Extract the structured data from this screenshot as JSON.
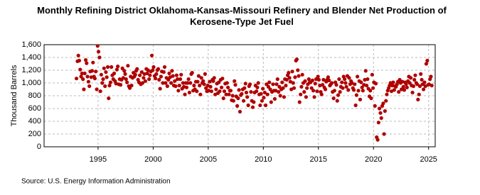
{
  "chart_data": {
    "type": "scatter",
    "title": "Monthly Refining District Oklahoma-Kansas-Missouri Refinery and Blender Net Production of Kerosene-Type Jet Fuel",
    "y_label": "Thousand Barrels",
    "source": "Source: U.S. Energy Information Administration",
    "xlim": [
      1990.1,
      2025.6
    ],
    "xticks": [
      1995,
      2000,
      2005,
      2010,
      2015,
      2020,
      2025
    ],
    "ylim": [
      0,
      1600
    ],
    "yticks": [
      0,
      200,
      400,
      600,
      800,
      {
        "value": 1000,
        "label": "1,000"
      },
      {
        "value": 1200,
        "label": "1,200"
      },
      {
        "value": 1400,
        "label": "1,400"
      },
      {
        "value": 1600,
        "label": "1,600"
      }
    ],
    "grid": true,
    "color": "#b00000",
    "x": [
      1993.04,
      1993.13,
      1993.21,
      1993.29,
      1993.38,
      1993.46,
      1993.54,
      1993.63,
      1993.71,
      1993.79,
      1993.88,
      1993.96,
      1994.04,
      1994.13,
      1994.21,
      1994.29,
      1994.38,
      1994.46,
      1994.54,
      1994.63,
      1994.71,
      1994.79,
      1994.88,
      1994.96,
      1995.04,
      1995.13,
      1995.21,
      1995.29,
      1995.38,
      1995.46,
      1995.54,
      1995.63,
      1995.71,
      1995.79,
      1995.88,
      1995.96,
      1996.04,
      1996.13,
      1996.21,
      1996.29,
      1996.38,
      1996.46,
      1996.54,
      1996.63,
      1996.71,
      1996.79,
      1996.88,
      1996.96,
      1997.04,
      1997.13,
      1997.21,
      1997.29,
      1997.38,
      1997.46,
      1997.54,
      1997.63,
      1997.71,
      1997.79,
      1997.88,
      1997.96,
      1998.04,
      1998.13,
      1998.21,
      1998.29,
      1998.38,
      1998.46,
      1998.54,
      1998.63,
      1998.71,
      1998.79,
      1998.88,
      1998.96,
      1999.04,
      1999.13,
      1999.21,
      1999.29,
      1999.38,
      1999.46,
      1999.54,
      1999.63,
      1999.71,
      1999.79,
      1999.88,
      1999.96,
      2000.04,
      2000.13,
      2000.21,
      2000.29,
      2000.38,
      2000.46,
      2000.54,
      2000.63,
      2000.71,
      2000.79,
      2000.88,
      2000.96,
      2001.04,
      2001.13,
      2001.21,
      2001.29,
      2001.38,
      2001.46,
      2001.54,
      2001.63,
      2001.71,
      2001.79,
      2001.88,
      2001.96,
      2002.04,
      2002.13,
      2002.21,
      2002.29,
      2002.38,
      2002.46,
      2002.54,
      2002.63,
      2002.71,
      2002.79,
      2002.88,
      2002.96,
      2003.04,
      2003.13,
      2003.21,
      2003.29,
      2003.38,
      2003.46,
      2003.54,
      2003.63,
      2003.71,
      2003.79,
      2003.88,
      2003.96,
      2004.04,
      2004.13,
      2004.21,
      2004.29,
      2004.38,
      2004.46,
      2004.54,
      2004.63,
      2004.71,
      2004.79,
      2004.88,
      2004.96,
      2005.04,
      2005.13,
      2005.21,
      2005.29,
      2005.38,
      2005.46,
      2005.54,
      2005.63,
      2005.71,
      2005.79,
      2005.88,
      2005.96,
      2006.04,
      2006.13,
      2006.21,
      2006.29,
      2006.38,
      2006.46,
      2006.54,
      2006.63,
      2006.71,
      2006.79,
      2006.88,
      2006.96,
      2007.04,
      2007.13,
      2007.21,
      2007.29,
      2007.38,
      2007.46,
      2007.54,
      2007.63,
      2007.71,
      2007.79,
      2007.88,
      2007.96,
      2008.04,
      2008.13,
      2008.21,
      2008.29,
      2008.38,
      2008.46,
      2008.54,
      2008.63,
      2008.71,
      2008.79,
      2008.88,
      2008.96,
      2009.04,
      2009.13,
      2009.21,
      2009.29,
      2009.38,
      2009.46,
      2009.54,
      2009.63,
      2009.71,
      2009.79,
      2009.88,
      2009.96,
      2010.04,
      2010.13,
      2010.21,
      2010.29,
      2010.38,
      2010.46,
      2010.54,
      2010.63,
      2010.71,
      2010.79,
      2010.88,
      2010.96,
      2011.04,
      2011.13,
      2011.21,
      2011.29,
      2011.38,
      2011.46,
      2011.54,
      2011.63,
      2011.71,
      2011.79,
      2011.88,
      2011.96,
      2012.04,
      2012.13,
      2012.21,
      2012.29,
      2012.38,
      2012.46,
      2012.54,
      2012.63,
      2012.71,
      2012.79,
      2012.88,
      2012.96,
      2013.04,
      2013.13,
      2013.21,
      2013.29,
      2013.38,
      2013.46,
      2013.54,
      2013.63,
      2013.71,
      2013.79,
      2013.88,
      2013.96,
      2014.04,
      2014.13,
      2014.21,
      2014.29,
      2014.38,
      2014.46,
      2014.54,
      2014.63,
      2014.71,
      2014.79,
      2014.88,
      2014.96,
      2015.04,
      2015.13,
      2015.21,
      2015.29,
      2015.38,
      2015.46,
      2015.54,
      2015.63,
      2015.71,
      2015.79,
      2015.88,
      2015.96,
      2016.04,
      2016.13,
      2016.21,
      2016.29,
      2016.38,
      2016.46,
      2016.54,
      2016.63,
      2016.71,
      2016.79,
      2016.88,
      2016.96,
      2017.04,
      2017.13,
      2017.21,
      2017.29,
      2017.38,
      2017.46,
      2017.54,
      2017.63,
      2017.71,
      2017.79,
      2017.88,
      2017.96,
      2018.04,
      2018.13,
      2018.21,
      2018.29,
      2018.38,
      2018.46,
      2018.54,
      2018.63,
      2018.71,
      2018.79,
      2018.88,
      2018.96,
      2019.04,
      2019.13,
      2019.21,
      2019.29,
      2019.38,
      2019.46,
      2019.54,
      2019.63,
      2019.71,
      2019.79,
      2019.88,
      2019.96,
      2020.04,
      2020.13,
      2020.21,
      2020.29,
      2020.38,
      2020.46,
      2020.54,
      2020.63,
      2020.71,
      2020.79,
      2020.88,
      2020.96,
      2021.04,
      2021.13,
      2021.21,
      2021.29,
      2021.38,
      2021.46,
      2021.54,
      2021.63,
      2021.71,
      2021.79,
      2021.88,
      2021.96,
      2022.04,
      2022.13,
      2022.21,
      2022.29,
      2022.38,
      2022.46,
      2022.54,
      2022.63,
      2022.71,
      2022.79,
      2022.88,
      2022.96,
      2023.04,
      2023.13,
      2023.21,
      2023.29,
      2023.38,
      2023.46,
      2023.54,
      2023.63,
      2023.71,
      2023.79,
      2023.88,
      2023.96,
      2024.04,
      2024.13,
      2024.21,
      2024.29,
      2024.38,
      2024.46,
      2024.54,
      2024.63,
      2024.71,
      2024.79,
      2024.88,
      2024.96,
      2025.04,
      2025.13,
      2025.21,
      2025.29
    ],
    "values": [
      1070,
      1340,
      1430,
      1350,
      1210,
      1100,
      1150,
      1060,
      900,
      1150,
      1360,
      1310,
      1100,
      1020,
      950,
      1180,
      1090,
      1190,
      1320,
      1100,
      1070,
      1180,
      900,
      1580,
      1490,
      1400,
      870,
      1130,
      1000,
      1060,
      1230,
      950,
      1170,
      1090,
      1250,
      760,
      960,
      1010,
      1250,
      1120,
      1060,
      1150,
      1030,
      990,
      1210,
      1260,
      980,
      1060,
      970,
      1050,
      1230,
      1080,
      1190,
      1140,
      1060,
      1010,
      1270,
      950,
      920,
      1100,
      960,
      1080,
      1160,
      1100,
      1130,
      1190,
      1220,
      1050,
      1010,
      1120,
      980,
      1170,
      1000,
      1080,
      1140,
      1030,
      1220,
      1150,
      1200,
      1060,
      1120,
      1180,
      1430,
      1200,
      1250,
      1110,
      1070,
      1140,
      1200,
      1220,
      1050,
      910,
      1100,
      1180,
      1000,
      1170,
      1250,
      1000,
      1080,
      950,
      1050,
      1150,
      1090,
      1000,
      1190,
      1110,
      960,
      1030,
      950,
      1120,
      1060,
      880,
      960,
      1060,
      1130,
      910,
      1000,
      940,
      820,
      1000,
      930,
      1000,
      1060,
      850,
      1000,
      1140,
      1160,
      880,
      960,
      900,
      1020,
      870,
      1020,
      1110,
      960,
      820,
      1080,
      1000,
      1030,
      980,
      1140,
      920,
      870,
      960,
      880,
      1020,
      940,
      870,
      1050,
      1030,
      1080,
      820,
      900,
      990,
      840,
      1010,
      870,
      1050,
      930,
      1070,
      760,
      870,
      990,
      820,
      1000,
      930,
      820,
      880,
      880,
      730,
      800,
      720,
      1030,
      970,
      790,
      640,
      760,
      890,
      550,
      810,
      830,
      900,
      720,
      920,
      990,
      850,
      780,
      650,
      950,
      980,
      860,
      720,
      620,
      700,
      850,
      960,
      870,
      930,
      1000,
      820,
      650,
      830,
      720,
      910,
      770,
      850,
      650,
      980,
      820,
      940,
      1010,
      900,
      700,
      860,
      980,
      880,
      750,
      880,
      980,
      1060,
      860,
      940,
      800,
      900,
      1010,
      920,
      780,
      1060,
      960,
      1050,
      1120,
      1160,
      1080,
      1020,
      900,
      1180,
      1000,
      920,
      1090,
      1350,
      1370,
      1200,
      1110,
      700,
      820,
      940,
      1130,
      1000,
      860,
      1030,
      780,
      920,
      980,
      1060,
      1010,
      1010,
      920,
      1040,
      880,
      780,
      990,
      1060,
      870,
      1100,
      1050,
      960,
      860,
      820,
      970,
      1050,
      930,
      900,
      1020,
      1050,
      1090,
      1040,
      960,
      980,
      1000,
      860,
      760,
      880,
      1010,
      970,
      720,
      810,
      1060,
      860,
      940,
      1010,
      920,
      1100,
      1060,
      1000,
      940,
      1110,
      890,
      1080,
      980,
      1030,
      1000,
      920,
      890,
      980,
      650,
      810,
      1100,
      880,
      1030,
      740,
      1010,
      930,
      880,
      970,
      1050,
      1190,
      960,
      1060,
      910,
      790,
      880,
      760,
      1130,
      920,
      1010,
      640,
      990,
      150,
      110,
      380,
      600,
      530,
      450,
      640,
      680,
      200,
      560,
      720,
      820,
      880,
      920,
      960,
      1000,
      870,
      960,
      1010,
      890,
      950,
      940,
      980,
      1020,
      860,
      1050,
      1000,
      900,
      1020,
      940,
      890,
      1010,
      980,
      930,
      1030,
      1100,
      1000,
      1080,
      960,
      850,
      950,
      1050,
      1120,
      1000,
      980,
      740,
      820,
      950,
      1140,
      1050,
      980,
      900,
      1010,
      950,
      1300,
      1350,
      970,
      980,
      1060,
      1100,
      960
    ]
  }
}
